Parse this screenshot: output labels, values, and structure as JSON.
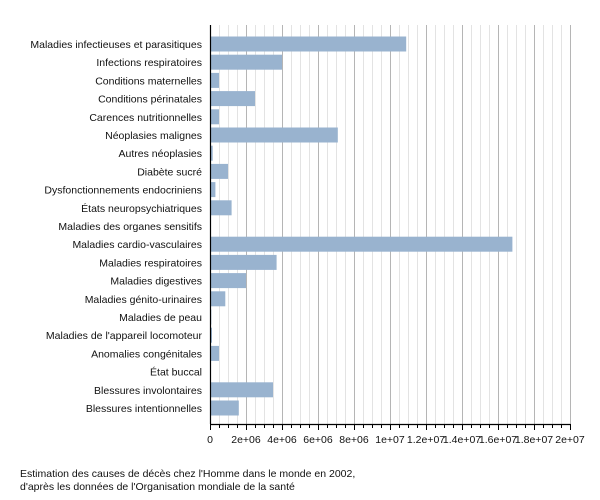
{
  "chart_data": {
    "type": "bar",
    "orientation": "horizontal",
    "title": "",
    "xlabel": "",
    "ylabel": "",
    "xlim": [
      0,
      20000000
    ],
    "grid": true,
    "bar_color": "#99b3cf",
    "categories": [
      "Maladies infectieuses et parasitiques",
      "Infections respiratoires",
      "Conditions maternelles",
      "Conditions périnatales",
      "Carences nutritionnelles",
      "Néoplasies malignes",
      "Autres néoplasies",
      "Diabète sucré",
      "Dysfonctionnements endocriniens",
      "États neuropsychiatriques",
      "Maladies des organes sensitifs",
      "Maladies cardio-vasculaires",
      "Maladies respiratoires",
      "Maladies digestives",
      "Maladies génito-urinaires",
      "Maladies de peau",
      "Maladies de l'appareil locomoteur",
      "Anomalies congénitales",
      "État buccal",
      "Blessures involontaires",
      "Blessures intentionnelles"
    ],
    "values": [
      10900000,
      4000000,
      500000,
      2500000,
      500000,
      7100000,
      150000,
      1000000,
      300000,
      1200000,
      5000,
      16800000,
      3700000,
      2000000,
      850000,
      70000,
      110000,
      500000,
      5000,
      3500000,
      1600000
    ],
    "xticks": [
      0,
      2000000,
      4000000,
      6000000,
      8000000,
      10000000,
      12000000,
      14000000,
      16000000,
      18000000,
      20000000
    ],
    "xtick_labels": [
      "0",
      "2e+06",
      "4e+06",
      "6e+06",
      "8e+06",
      "1e+07",
      "1.2e+07",
      "1.4e+07",
      "1.6e+07",
      "1.8e+07",
      "2e+07"
    ],
    "minor_tick_step": 500000
  },
  "caption": {
    "line1": "Estimation des causes de décès chez l'Homme dans le monde en 2002,",
    "line2": "d'après les données de l'Organisation mondiale de la santé"
  }
}
